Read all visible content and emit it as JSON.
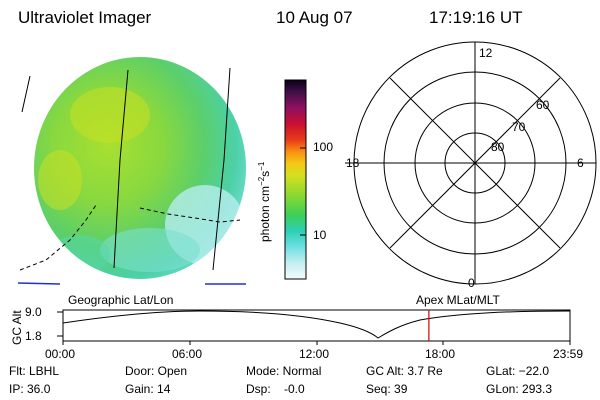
{
  "header": {
    "title": "Ultraviolet Imager",
    "date": "10 Aug 07",
    "time": "17:19:16 UT"
  },
  "colorbar": {
    "unit_label": "photon cm",
    "unit_exp1": "−2",
    "unit_s": "s",
    "unit_exp2": "−1",
    "ticks": [
      "100",
      "10"
    ],
    "colors": [
      "#e8f4f8",
      "#c6eef0",
      "#7fe6e6",
      "#3fd8d8",
      "#2ec8b0",
      "#3cd060",
      "#6ad93a",
      "#a8e02a",
      "#d8e020",
      "#f0d018",
      "#f8a010",
      "#f07010",
      "#e02020",
      "#b01040",
      "#801060",
      "#401040",
      "#100020"
    ]
  },
  "polar": {
    "mlt_labels": [
      "12",
      "18",
      "6",
      "0"
    ],
    "lat_labels": [
      "60",
      "70",
      "80"
    ]
  },
  "timeline": {
    "left_caption": "Geographic Lat/Lon",
    "right_caption": "Apex MLat/MLT",
    "axis_label": "GC Alt",
    "y_ticks": [
      "9.0",
      "1.8"
    ],
    "x_ticks": [
      "00:00",
      "06:00",
      "12:00",
      "18:00",
      "23:59"
    ],
    "current_time_hours": 17.32
  },
  "status": {
    "flt": "Flt: LBHL",
    "ip": "IP: 36.0",
    "door": "Door: Open",
    "gain": "Gain: 14",
    "mode": "Mode: Normal",
    "dsp": "Dsp:    -0.0",
    "gcalt": "GC Alt: 3.7 Re",
    "seq": "Seq: 39",
    "glat": "GLat: −22.0",
    "glon": "GLon: 293.3"
  }
}
